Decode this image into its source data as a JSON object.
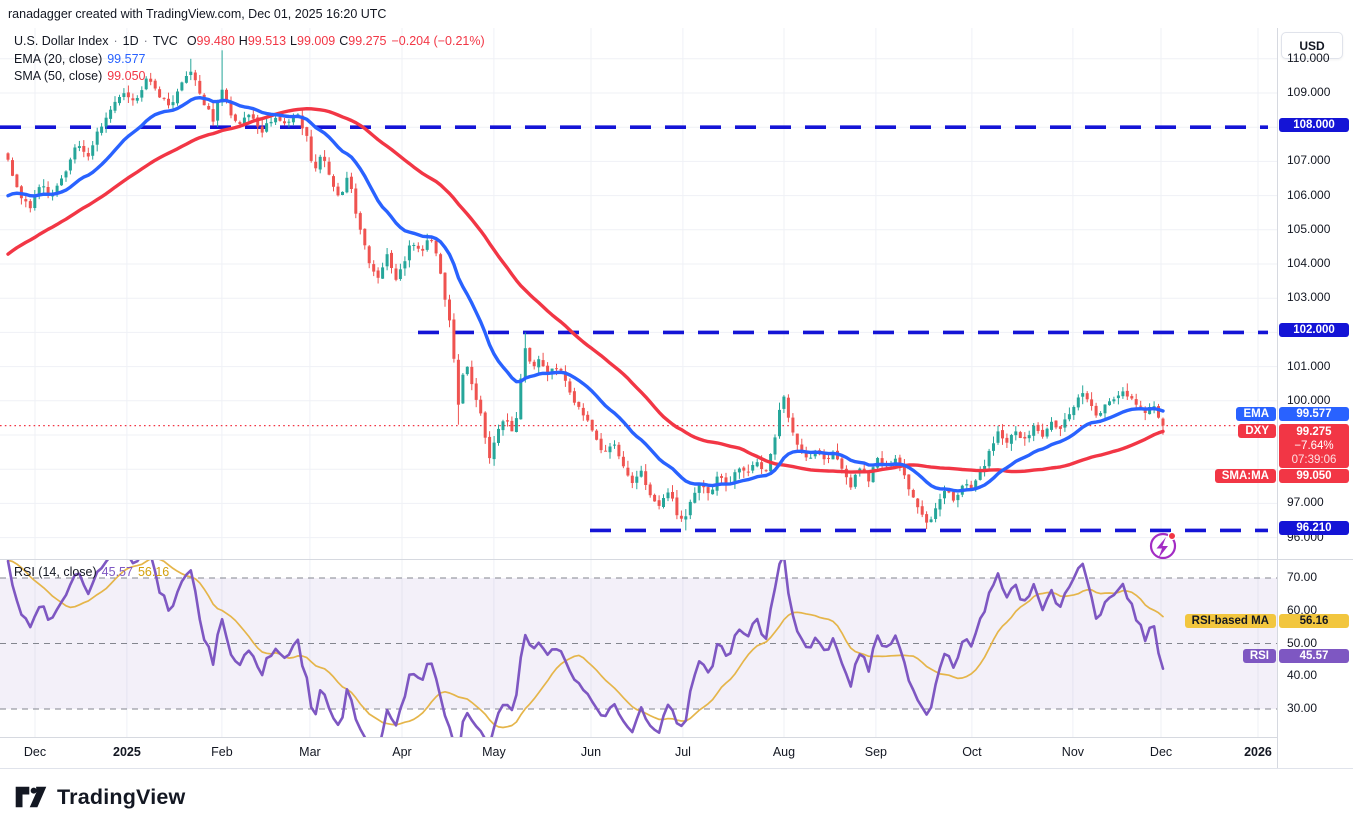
{
  "header": {
    "attribution": "ranadagger created with TradingView.com, Dec 01, 2025 16:20 UTC"
  },
  "legend": {
    "symbol_title": "U.S. Dollar Index",
    "separator": "·",
    "interval": "1D",
    "exchange": "TVC",
    "ohlc": [
      {
        "k": "O",
        "v": "99.480"
      },
      {
        "k": "H",
        "v": "99.513"
      },
      {
        "k": "L",
        "v": "99.009"
      },
      {
        "k": "C",
        "v": "99.275"
      }
    ],
    "change": "−0.204 (−0.21%)",
    "ema_label": "EMA (20, close)",
    "ema_value": "99.577",
    "sma_label": "SMA (50, close)",
    "sma_value": "99.050"
  },
  "price_axis": {
    "currency": "USD",
    "ticks": [
      {
        "label": "110.000",
        "p": 110
      },
      {
        "label": "109.000",
        "p": 109
      },
      {
        "label": "107.000",
        "p": 107
      },
      {
        "label": "106.000",
        "p": 106
      },
      {
        "label": "105.000",
        "p": 105
      },
      {
        "label": "104.000",
        "p": 104
      },
      {
        "label": "103.000",
        "p": 103
      },
      {
        "label": "101.000",
        "p": 101
      },
      {
        "label": "100.000",
        "p": 100
      },
      {
        "label": "97.000",
        "p": 97
      },
      {
        "label": "96.000",
        "p": 96
      }
    ],
    "level_badges": [
      {
        "label": "108.000",
        "p": 108
      },
      {
        "label": "102.000",
        "p": 102
      },
      {
        "label": "96.210",
        "p": 96.21
      }
    ],
    "ema_badge": {
      "tag": "EMA",
      "value": "99.577",
      "p": 99.577
    },
    "dxy_badge": {
      "tag": "DXY",
      "value": "99.275",
      "change": "−7.64%",
      "countdown": "07:39:06",
      "p": 99.275
    },
    "sma_badge": {
      "tag": "SMA:MA",
      "value": "99.050",
      "p": 99.05
    }
  },
  "rsi_pane": {
    "legend_label": "RSI (14, close)",
    "legend_rsi": "45.57",
    "legend_ma": "56.16",
    "ticks": [
      {
        "label": "70.00",
        "v": 70
      },
      {
        "label": "60.00",
        "v": 60
      },
      {
        "label": "50.00",
        "v": 50
      },
      {
        "label": "40.00",
        "v": 40
      },
      {
        "label": "30.00",
        "v": 30
      }
    ],
    "ma_badge": {
      "tag": "RSI-based MA",
      "value": "56.16",
      "v": 56.16
    },
    "rsi_badge": {
      "tag": "RSI",
      "value": "45.57",
      "v": 45.57
    }
  },
  "time_axis": {
    "ticks": [
      {
        "label": "Dec",
        "f": 0.0274,
        "year": false
      },
      {
        "label": "2025",
        "f": 0.0994,
        "year": true
      },
      {
        "label": "Feb",
        "f": 0.1738,
        "year": false
      },
      {
        "label": "Mar",
        "f": 0.2427,
        "year": false
      },
      {
        "label": "Apr",
        "f": 0.3148,
        "year": false
      },
      {
        "label": "May",
        "f": 0.3868,
        "year": false
      },
      {
        "label": "Jun",
        "f": 0.4628,
        "year": false
      },
      {
        "label": "Jul",
        "f": 0.5348,
        "year": false
      },
      {
        "label": "Aug",
        "f": 0.6139,
        "year": false
      },
      {
        "label": "Sep",
        "f": 0.6859,
        "year": false
      },
      {
        "label": "Oct",
        "f": 0.7611,
        "year": false
      },
      {
        "label": "Nov",
        "f": 0.8402,
        "year": false
      },
      {
        "label": "Dec",
        "f": 0.9092,
        "year": false
      },
      {
        "label": "2026",
        "f": 0.9851,
        "year": true
      }
    ]
  },
  "footer": {
    "brand": "TradingView"
  },
  "colors": {
    "up": "#26a69a",
    "down": "#ef5350",
    "ema": "#2962ff",
    "sma": "#f23645",
    "level": "#1414d6",
    "price_line": "#f23645",
    "rsi": "#7e57c2",
    "rsi_ma": "#e5b54a",
    "rsi_band": "rgba(126,87,194,0.09)",
    "rsi_level": "#83868f",
    "badge_blue": "#1414d6",
    "badge_red": "#f23645",
    "badge_yellow": "#f2c63e",
    "badge_purple": "#7e57c2",
    "grid": "#eff1f6",
    "text": "#131722",
    "icon_purple": "#a32cc4",
    "icon_dot": "#f23645"
  },
  "chart_data": {
    "type": "candlestick",
    "title": "U.S. Dollar Index",
    "interval": "1D",
    "exchange": "TVC",
    "x_range": [
      "Dec 2024",
      "Dec 2025"
    ],
    "y_range_visible": [
      95.3,
      110.9
    ],
    "num_bars": 260,
    "last_bar": {
      "o": 99.48,
      "h": 99.513,
      "l": 99.009,
      "c": 99.275
    },
    "last_close": 99.275,
    "levels": [
      {
        "label": "108.000",
        "price": 108.0,
        "from_f": 0.0
      },
      {
        "label": "102.000",
        "price": 102.0,
        "from_f": 0.327
      },
      {
        "label": "96.210",
        "price": 96.21,
        "from_f": 0.462
      }
    ],
    "current_price_line": 99.275,
    "overlays": [
      {
        "name": "EMA 20",
        "color": "#2962ff",
        "last": 99.577
      },
      {
        "name": "SMA 50",
        "color": "#f23645",
        "last": 99.05
      }
    ],
    "rsi": {
      "period": 14,
      "last": 45.57,
      "ma_last": 56.16,
      "levels": [
        70,
        50,
        30
      ],
      "band": [
        30,
        70
      ]
    },
    "close_path": [
      [
        0.0,
        107.1
      ],
      [
        0.006,
        106.4
      ],
      [
        0.012,
        105.9
      ],
      [
        0.02,
        105.6
      ],
      [
        0.028,
        106.4
      ],
      [
        0.036,
        105.9
      ],
      [
        0.044,
        106.3
      ],
      [
        0.052,
        106.9
      ],
      [
        0.06,
        107.5
      ],
      [
        0.068,
        107.1
      ],
      [
        0.078,
        107.9
      ],
      [
        0.088,
        108.4
      ],
      [
        0.098,
        109.0
      ],
      [
        0.108,
        108.7
      ],
      [
        0.12,
        109.4
      ],
      [
        0.13,
        109.0
      ],
      [
        0.14,
        108.6
      ],
      [
        0.15,
        109.2
      ],
      [
        0.158,
        109.7
      ],
      [
        0.168,
        108.8
      ],
      [
        0.178,
        108.2
      ],
      [
        0.185,
        109.2
      ],
      [
        0.192,
        108.4
      ],
      [
        0.2,
        108.1
      ],
      [
        0.21,
        108.4
      ],
      [
        0.22,
        107.9
      ],
      [
        0.23,
        108.3
      ],
      [
        0.24,
        108.1
      ],
      [
        0.25,
        108.4
      ],
      [
        0.258,
        107.8
      ],
      [
        0.265,
        106.7
      ],
      [
        0.272,
        107.3
      ],
      [
        0.28,
        106.3
      ],
      [
        0.288,
        105.9
      ],
      [
        0.295,
        106.6
      ],
      [
        0.303,
        105.2
      ],
      [
        0.312,
        104.1
      ],
      [
        0.32,
        103.6
      ],
      [
        0.328,
        104.3
      ],
      [
        0.335,
        103.5
      ],
      [
        0.342,
        104.0
      ],
      [
        0.35,
        104.7
      ],
      [
        0.358,
        104.3
      ],
      [
        0.365,
        104.9
      ],
      [
        0.372,
        104.2
      ],
      [
        0.378,
        103.1
      ],
      [
        0.384,
        102.0
      ],
      [
        0.39,
        99.9
      ],
      [
        0.396,
        101.2
      ],
      [
        0.403,
        100.4
      ],
      [
        0.41,
        99.5
      ],
      [
        0.417,
        98.3
      ],
      [
        0.424,
        99.2
      ],
      [
        0.431,
        99.6
      ],
      [
        0.438,
        98.9
      ],
      [
        0.445,
        100.9
      ],
      [
        0.449,
        101.8
      ],
      [
        0.453,
        100.9
      ],
      [
        0.46,
        101.2
      ],
      [
        0.468,
        100.8
      ],
      [
        0.476,
        101.0
      ],
      [
        0.484,
        100.5
      ],
      [
        0.492,
        99.9
      ],
      [
        0.5,
        99.5
      ],
      [
        0.508,
        99.0
      ],
      [
        0.516,
        98.4
      ],
      [
        0.524,
        98.8
      ],
      [
        0.532,
        98.1
      ],
      [
        0.54,
        97.5
      ],
      [
        0.548,
        98.0
      ],
      [
        0.556,
        97.2
      ],
      [
        0.564,
        96.9
      ],
      [
        0.572,
        97.4
      ],
      [
        0.58,
        96.6
      ],
      [
        0.586,
        96.5
      ],
      [
        0.592,
        97.1
      ],
      [
        0.6,
        97.6
      ],
      [
        0.608,
        97.3
      ],
      [
        0.616,
        97.9
      ],
      [
        0.624,
        97.5
      ],
      [
        0.632,
        98.1
      ],
      [
        0.64,
        97.8
      ],
      [
        0.648,
        98.3
      ],
      [
        0.656,
        97.9
      ],
      [
        0.663,
        98.7
      ],
      [
        0.668,
        99.8
      ],
      [
        0.672,
        100.2
      ],
      [
        0.677,
        99.2
      ],
      [
        0.684,
        98.7
      ],
      [
        0.692,
        98.3
      ],
      [
        0.7,
        98.6
      ],
      [
        0.708,
        98.2
      ],
      [
        0.715,
        98.5
      ],
      [
        0.722,
        98.0
      ],
      [
        0.73,
        97.5
      ],
      [
        0.738,
        98.1
      ],
      [
        0.745,
        97.7
      ],
      [
        0.753,
        98.3
      ],
      [
        0.76,
        98.0
      ],
      [
        0.768,
        98.4
      ],
      [
        0.775,
        97.9
      ],
      [
        0.782,
        97.3
      ],
      [
        0.79,
        96.8
      ],
      [
        0.797,
        96.4
      ],
      [
        0.805,
        97.0
      ],
      [
        0.812,
        97.4
      ],
      [
        0.82,
        97.1
      ],
      [
        0.828,
        97.6
      ],
      [
        0.835,
        97.4
      ],
      [
        0.842,
        97.9
      ],
      [
        0.85,
        98.5
      ],
      [
        0.858,
        99.1
      ],
      [
        0.865,
        98.7
      ],
      [
        0.872,
        99.2
      ],
      [
        0.88,
        98.8
      ],
      [
        0.888,
        99.3
      ],
      [
        0.895,
        98.9
      ],
      [
        0.902,
        99.4
      ],
      [
        0.91,
        99.1
      ],
      [
        0.918,
        99.6
      ],
      [
        0.925,
        100.0
      ],
      [
        0.932,
        100.3
      ],
      [
        0.938,
        99.8
      ],
      [
        0.944,
        99.5
      ],
      [
        0.951,
        99.9
      ],
      [
        0.958,
        100.1
      ],
      [
        0.965,
        100.3
      ],
      [
        0.972,
        100.1
      ],
      [
        0.978,
        99.9
      ],
      [
        0.985,
        99.7
      ],
      [
        0.991,
        99.9
      ],
      [
        1.0,
        99.28
      ]
    ],
    "wick_events": [
      {
        "t": 0.185,
        "high": 110.25
      },
      {
        "t": 0.158,
        "high": 110.0
      },
      {
        "t": 0.449,
        "high": 102.0
      },
      {
        "t": 0.39,
        "low": 99.3
      },
      {
        "t": 0.586,
        "low": 96.21
      },
      {
        "t": 0.797,
        "low": 96.25
      },
      {
        "t": 0.932,
        "high": 100.45
      },
      {
        "t": 0.965,
        "high": 100.4
      }
    ]
  }
}
